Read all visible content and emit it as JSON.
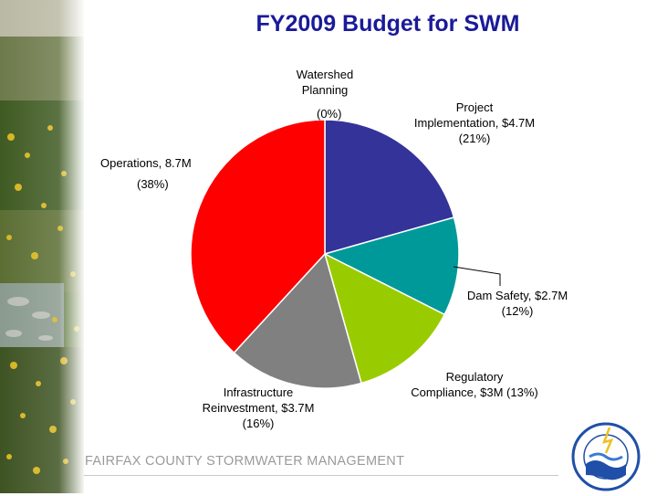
{
  "chart_data": {
    "type": "pie",
    "title": "FY2009 Budget for SWM",
    "slices": [
      {
        "label_lines": [
          "Watershed",
          "Planning"
        ],
        "pct_text": "(0%)",
        "value": 0.0,
        "color": "#c8c8c8"
      },
      {
        "label_lines": [
          "Project",
          "Implementation, $4.7M"
        ],
        "pct_text": "(21%)",
        "value": 4.7,
        "color": "#333399"
      },
      {
        "label_lines": [
          "Dam Safety, $2.7M"
        ],
        "pct_text": "(12%)",
        "value": 2.7,
        "color": "#009999"
      },
      {
        "label_lines": [
          "Regulatory",
          "Compliance, $3M (13%)"
        ],
        "pct_text": "",
        "value": 3.0,
        "color": "#99cc00"
      },
      {
        "label_lines": [
          "Infrastructure",
          "Reinvestment, $3.7M"
        ],
        "pct_text": "(16%)",
        "value": 3.7,
        "color": "#808080"
      },
      {
        "label_lines": [
          "Operations, 8.7M"
        ],
        "pct_text": "(38%)",
        "value": 8.7,
        "color": "#ff0000"
      }
    ],
    "start_angle_deg": 0,
    "legend": "none"
  },
  "footer": {
    "text": "FAIRFAX COUNTY STORMWATER MANAGEMENT"
  },
  "logo": {
    "ring_text": "PLANNING · DESIGN · MAINTENANCE",
    "center_text": "STORM WATER"
  }
}
